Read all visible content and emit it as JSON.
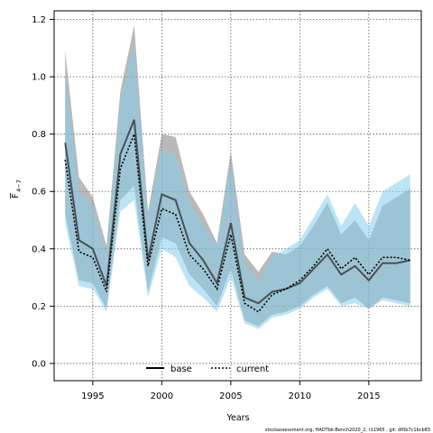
{
  "chart_data": {
    "type": "line",
    "title": "",
    "xlabel": "Years",
    "ylabel_main": "F",
    "ylabel_sub": "4−7",
    "xlim": [
      1992.2,
      2018.8
    ],
    "ylim": [
      -0.06,
      1.23
    ],
    "xticks": [
      1995,
      2000,
      2005,
      2010,
      2015
    ],
    "yticks": [
      0.0,
      0.2,
      0.4,
      0.6,
      0.8,
      1.0,
      1.2
    ],
    "ytick_labels": [
      "0.0",
      "0.2",
      "0.4",
      "0.6",
      "0.8",
      "1.0",
      "1.2"
    ],
    "grid": true,
    "legend_position": "bottom-center",
    "x": [
      1993,
      1994,
      1995,
      1996,
      1997,
      1998,
      1999,
      2000,
      2001,
      2002,
      2003,
      2004,
      2005,
      2006,
      2007,
      2008,
      2009,
      2010,
      2011,
      2012,
      2013,
      2014,
      2015,
      2016,
      2017,
      2018
    ],
    "series": [
      {
        "name": "base",
        "color": "#000000",
        "line_style": "solid",
        "band_color": "#808080",
        "values": [
          0.77,
          0.43,
          0.4,
          0.27,
          0.73,
          0.85,
          0.36,
          0.59,
          0.57,
          0.42,
          0.36,
          0.28,
          0.49,
          0.23,
          0.21,
          0.25,
          0.26,
          0.28,
          0.33,
          0.38,
          0.31,
          0.34,
          0.29,
          0.35,
          0.35,
          0.36
        ],
        "lower": [
          0.52,
          0.29,
          0.28,
          0.19,
          0.57,
          0.62,
          0.25,
          0.44,
          0.42,
          0.31,
          0.26,
          0.2,
          0.33,
          0.15,
          0.13,
          0.17,
          0.18,
          0.2,
          0.24,
          0.27,
          0.21,
          0.23,
          0.19,
          0.23,
          0.22,
          0.21
        ],
        "upper": [
          1.09,
          0.65,
          0.58,
          0.41,
          0.95,
          1.18,
          0.53,
          0.8,
          0.79,
          0.6,
          0.52,
          0.42,
          0.74,
          0.38,
          0.32,
          0.39,
          0.38,
          0.41,
          0.48,
          0.56,
          0.45,
          0.5,
          0.43,
          0.55,
          0.58,
          0.61
        ]
      },
      {
        "name": "current",
        "color": "#000000",
        "line_style": "dotted",
        "band_color": "#87CEEB",
        "values": [
          0.71,
          0.39,
          0.37,
          0.25,
          0.68,
          0.8,
          0.34,
          0.54,
          0.52,
          0.38,
          0.33,
          0.26,
          0.45,
          0.21,
          0.18,
          0.24,
          0.26,
          0.29,
          0.34,
          0.4,
          0.33,
          0.37,
          0.31,
          0.37,
          0.37,
          0.36
        ],
        "lower": [
          0.49,
          0.27,
          0.26,
          0.18,
          0.53,
          0.57,
          0.23,
          0.4,
          0.37,
          0.27,
          0.23,
          0.18,
          0.3,
          0.14,
          0.12,
          0.16,
          0.17,
          0.19,
          0.23,
          0.26,
          0.2,
          0.21,
          0.19,
          0.22,
          0.21,
          0.2
        ],
        "upper": [
          1.02,
          0.6,
          0.55,
          0.38,
          0.91,
          1.12,
          0.5,
          0.75,
          0.73,
          0.56,
          0.48,
          0.41,
          0.7,
          0.35,
          0.29,
          0.37,
          0.4,
          0.43,
          0.51,
          0.59,
          0.48,
          0.56,
          0.48,
          0.6,
          0.63,
          0.66
        ]
      }
    ]
  },
  "legend": {
    "base_label": "base",
    "current_label": "current"
  },
  "footer": "stockassessment.org, HADTbk-Bench2020_2, r11965 , git: df0b7c1bcb83"
}
